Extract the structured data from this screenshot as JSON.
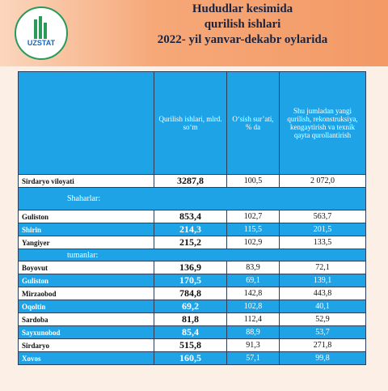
{
  "header": {
    "logo_text": "UZSTAT",
    "title": [
      "Hududlar kesimida",
      "qurilish ishlari",
      "2022- yil yanvar-dekabr oylarida"
    ]
  },
  "table": {
    "columns": [
      "Qurilish ishlari, mlrd. so‘m",
      "O‘sish sur’ati, % da",
      "Shu jumladan yangi qurilish, rekonstruksiya, kengaytirish va texnik  qayta qurollantirish"
    ],
    "total": [
      "Sirdaryo viloyati",
      "3287,8",
      "100,5",
      "2 072,0"
    ],
    "sections": [
      {
        "label": "Shaharlar:",
        "rows": [
          [
            "Guliston",
            "853,4",
            "102,7",
            "563,7"
          ],
          [
            "Shirin",
            "214,3",
            "115,5",
            "201,5"
          ],
          [
            "Yangiyer",
            "215,2",
            "102,9",
            "133,5"
          ]
        ]
      },
      {
        "label": "tumanlar:",
        "rows": [
          [
            "Boyovut",
            "136,9",
            "83,9",
            "72,1"
          ],
          [
            "Guliston",
            "170,5",
            "69,1",
            "139,1"
          ],
          [
            "Mirzaobod",
            "784,8",
            "142,8",
            "443,8"
          ],
          [
            "Oqoltin",
            "69,2",
            "102,8",
            "40,1"
          ],
          [
            "Sardoba",
            "81,8",
            "112,4",
            "52,9"
          ],
          [
            "Sayxunobod",
            "85,4",
            "88,9",
            "53,7"
          ],
          [
            "Sirdaryo",
            "515,8",
            "91,3",
            "271,8"
          ],
          [
            "Xovos",
            "160,5",
            "57,1",
            "99,8"
          ]
        ]
      }
    ]
  }
}
